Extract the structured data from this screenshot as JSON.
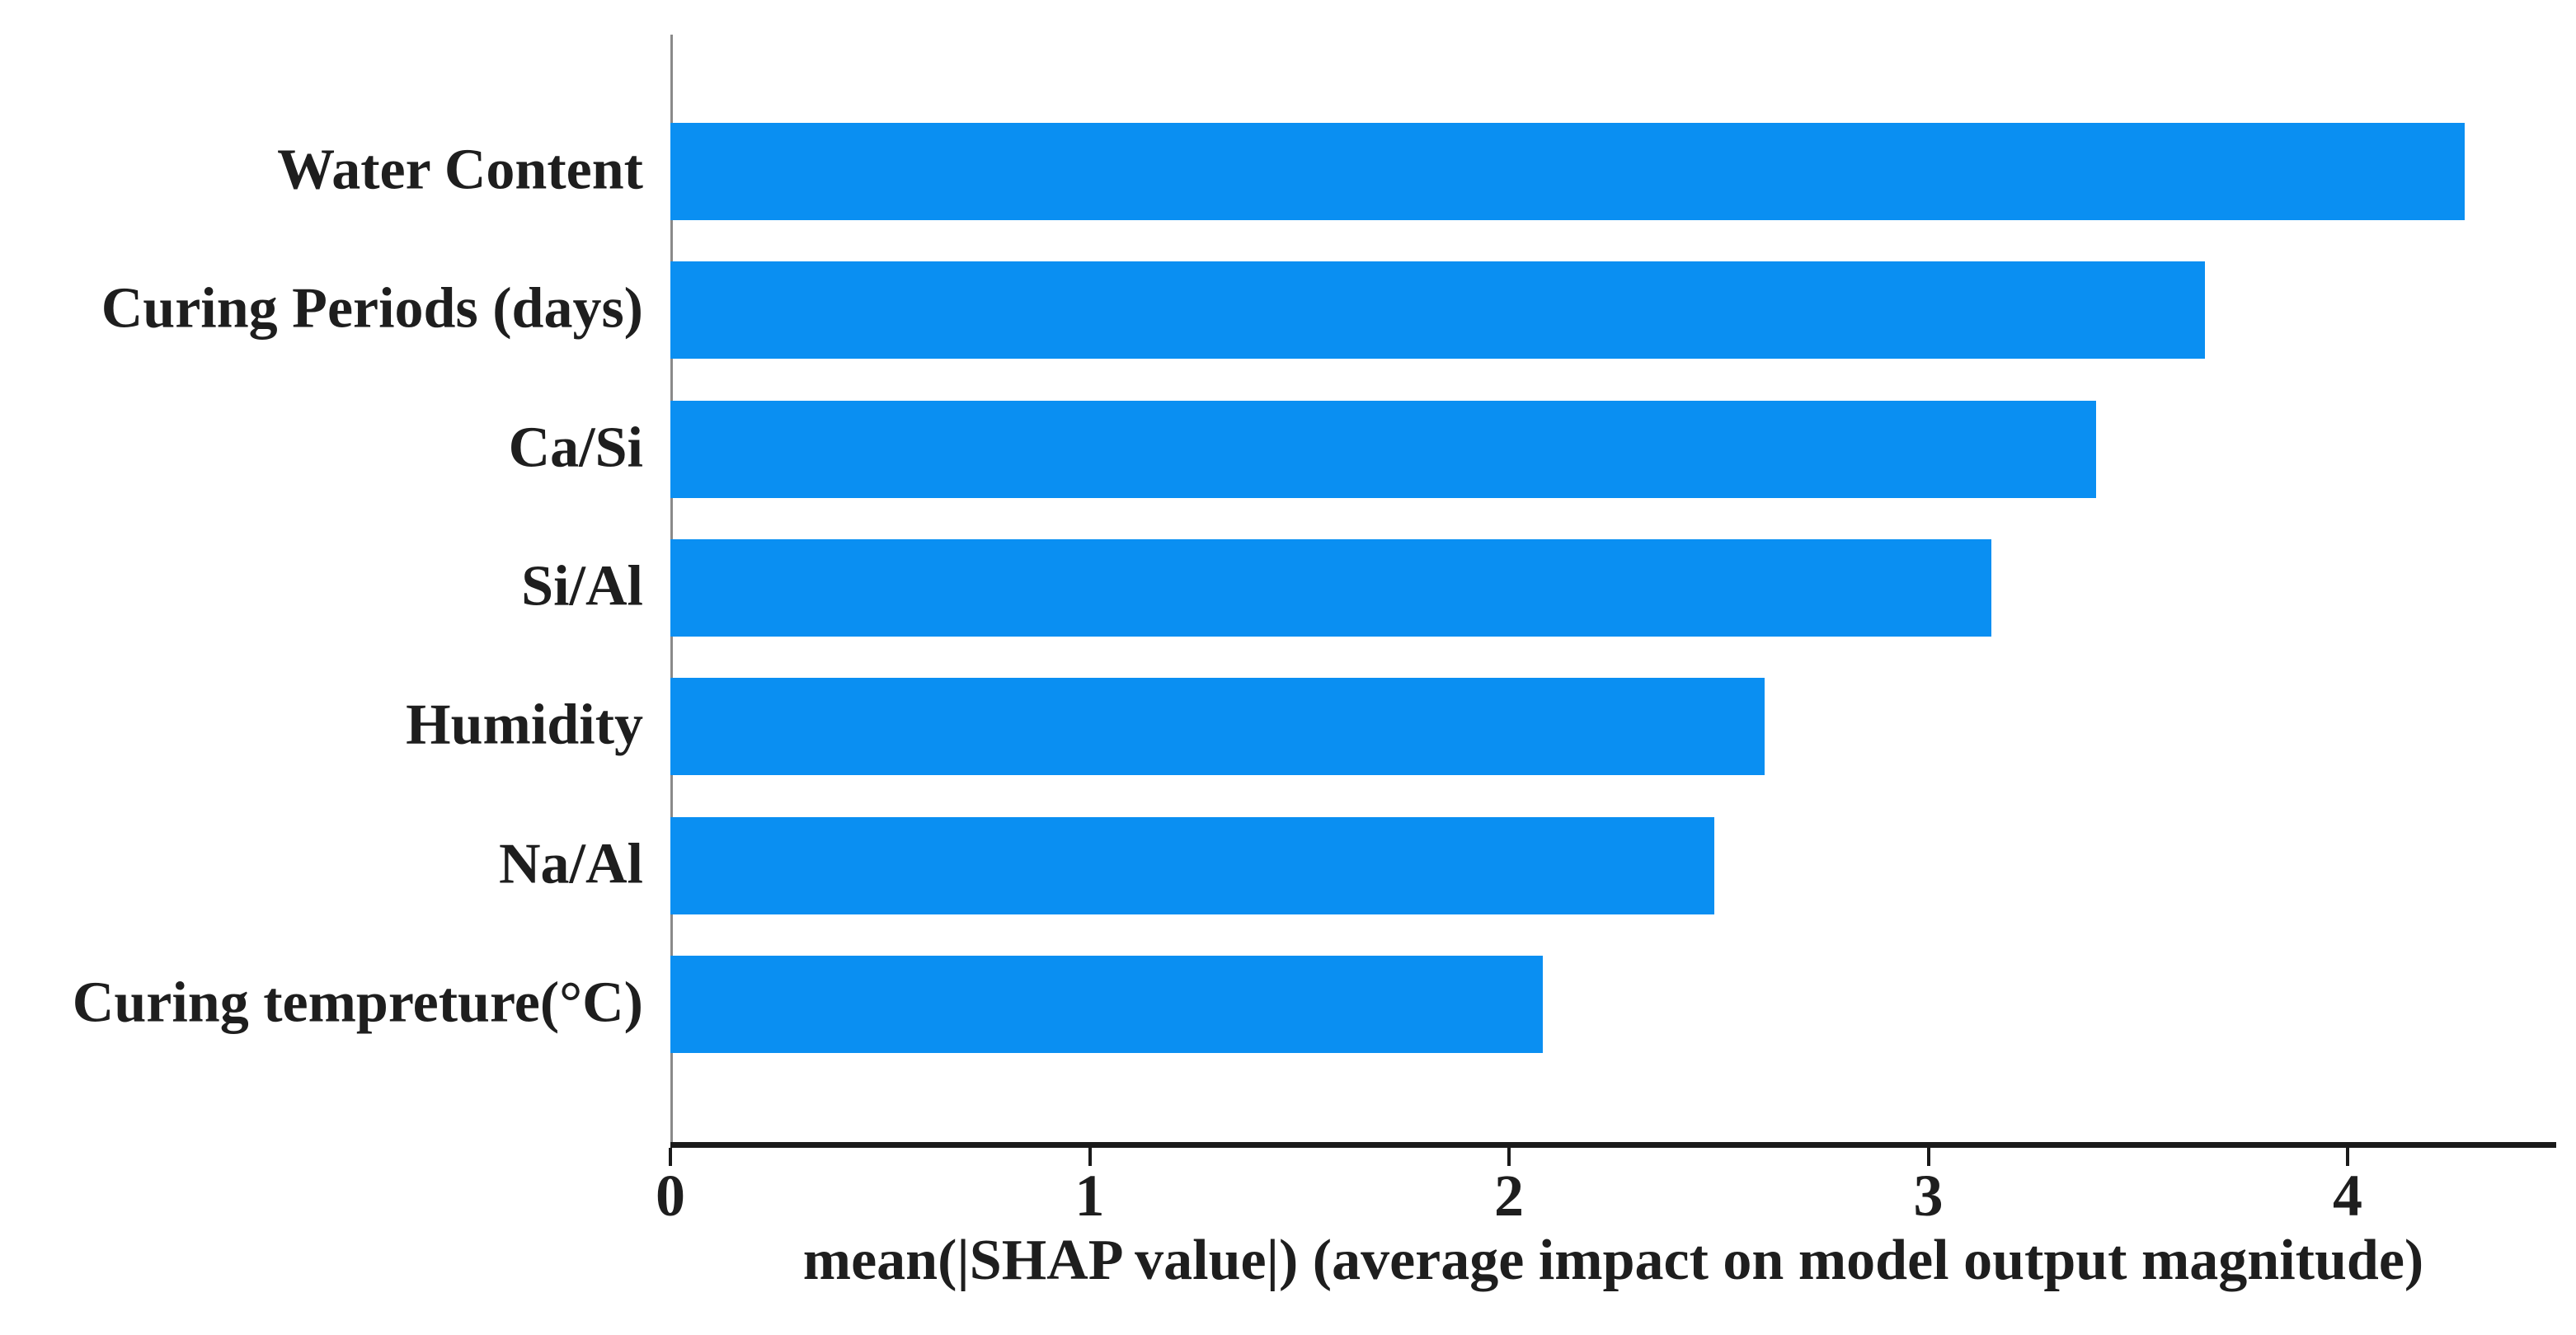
{
  "chart_data": {
    "type": "bar",
    "orientation": "horizontal",
    "title": "",
    "categories": [
      "Water Content",
      "Curing Periods (days)",
      "Ca/Si",
      "Si/Al",
      "Humidity",
      "Na/Al",
      "Curing tempreture(°C)"
    ],
    "values": [
      4.28,
      3.66,
      3.4,
      3.15,
      2.61,
      2.49,
      2.08
    ],
    "xlabel": "mean(|SHAP value|) (average impact on model output magnitude)",
    "ylabel": "",
    "xticks": [
      "0",
      "1",
      "2",
      "3",
      "4"
    ],
    "xtick_values": [
      0,
      1,
      2,
      3,
      4
    ],
    "xlim": [
      0,
      4.5
    ],
    "grid": false,
    "legend_position": "none",
    "bar_color": "#0a8ff2",
    "x_axis_color": "#1a1a1a",
    "y_axis_color": "#8a8a8a",
    "text_color": "#1e1e1e"
  }
}
